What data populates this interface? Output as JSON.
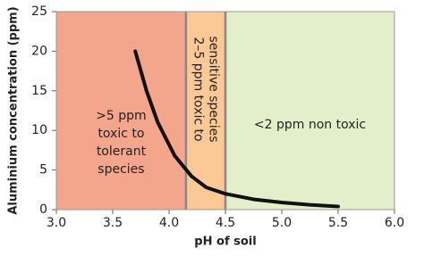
{
  "chart_data": {
    "type": "line",
    "x_label": "pH of soil",
    "y_label": "Aluminium concentration (ppm)",
    "x": [
      3.7,
      3.8,
      3.9,
      4.05,
      4.2,
      4.33,
      4.5,
      4.75,
      5.0,
      5.25,
      5.5
    ],
    "values": [
      20,
      15,
      11,
      6.8,
      4.2,
      2.8,
      2.0,
      1.3,
      0.9,
      0.6,
      0.4
    ],
    "color": "#111111",
    "xlim": [
      3,
      6
    ],
    "ylim": [
      0,
      25
    ],
    "xticks": [
      {
        "value": 3,
        "label": "3.0"
      },
      {
        "value": 3.5,
        "label": "3.5"
      },
      {
        "value": 4,
        "label": "4.0"
      },
      {
        "value": 4.5,
        "label": "4.5"
      },
      {
        "value": 5,
        "label": "5.0"
      },
      {
        "value": 5.5,
        "label": "5.5"
      },
      {
        "value": 6,
        "label": "6.0"
      }
    ],
    "yticks": [
      0,
      5,
      10,
      15,
      20,
      25
    ],
    "regions": [
      {
        "from": 3,
        "to": 4.15,
        "color": "#f4a68c",
        "label": [
          ">5 ppm",
          "toxic to",
          "tolerant",
          "species"
        ]
      },
      {
        "from": 4.15,
        "to": 4.5,
        "color": "#fac995",
        "label": [
          "2–5 ppm toxic to",
          "sensitive species"
        ]
      },
      {
        "from": 4.5,
        "to": 6,
        "color": "#e3eecb",
        "label": [
          "<2 ppm non toxic"
        ]
      }
    ]
  }
}
